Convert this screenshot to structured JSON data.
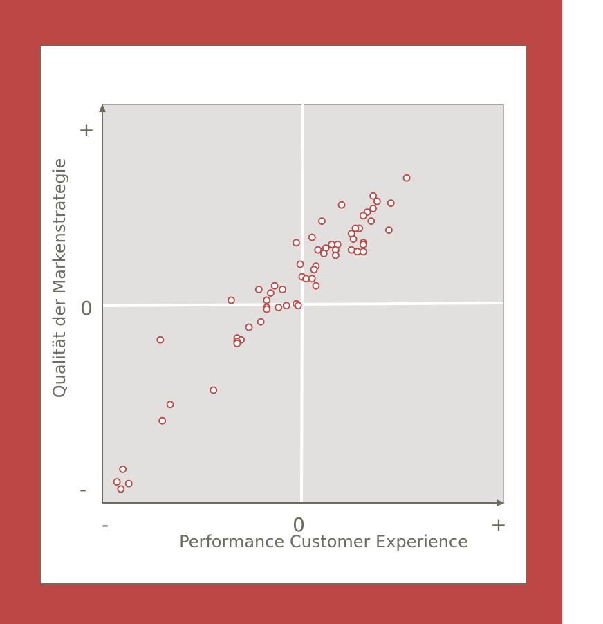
{
  "colors": {
    "frame": "#bd4744",
    "card": "#ffffff",
    "plot_bg": "#e2e0df",
    "axis": "#6c6c62",
    "marker_stroke": "#bd4744",
    "zero_line": "#ffffff"
  },
  "chart_data": {
    "type": "scatter",
    "title": "",
    "xlabel": "Performance Customer Experience",
    "ylabel": "Qualität der Markenstrategie",
    "x_ticks": [
      "-",
      "0",
      "+"
    ],
    "y_ticks": [
      "+",
      "0",
      "-"
    ],
    "xlim": [
      -1,
      1
    ],
    "ylim": [
      -1,
      1
    ],
    "grid": false,
    "legend": "none",
    "zero_lines": true,
    "points": [
      {
        "x": 0.53,
        "y": 0.73
      },
      {
        "x": 0.36,
        "y": 0.63
      },
      {
        "x": 0.38,
        "y": 0.6
      },
      {
        "x": 0.45,
        "y": 0.59
      },
      {
        "x": 0.2,
        "y": 0.58
      },
      {
        "x": 0.36,
        "y": 0.56
      },
      {
        "x": 0.33,
        "y": 0.54
      },
      {
        "x": 0.31,
        "y": 0.52
      },
      {
        "x": 0.35,
        "y": 0.49
      },
      {
        "x": 0.1,
        "y": 0.49
      },
      {
        "x": 0.29,
        "y": 0.45
      },
      {
        "x": 0.27,
        "y": 0.45
      },
      {
        "x": 0.44,
        "y": 0.44
      },
      {
        "x": 0.25,
        "y": 0.42
      },
      {
        "x": 0.05,
        "y": 0.4
      },
      {
        "x": 0.26,
        "y": 0.39
      },
      {
        "x": 0.31,
        "y": 0.37
      },
      {
        "x": -0.03,
        "y": 0.37
      },
      {
        "x": 0.31,
        "y": 0.36
      },
      {
        "x": 0.15,
        "y": 0.36
      },
      {
        "x": 0.18,
        "y": 0.36
      },
      {
        "x": 0.12,
        "y": 0.34
      },
      {
        "x": 0.17,
        "y": 0.33
      },
      {
        "x": 0.25,
        "y": 0.33
      },
      {
        "x": 0.08,
        "y": 0.33
      },
      {
        "x": 0.28,
        "y": 0.32
      },
      {
        "x": 0.11,
        "y": 0.31
      },
      {
        "x": 0.31,
        "y": 0.32
      },
      {
        "x": 0.17,
        "y": 0.3
      },
      {
        "x": -0.01,
        "y": 0.25
      },
      {
        "x": 0.07,
        "y": 0.24
      },
      {
        "x": 0.06,
        "y": 0.22
      },
      {
        "x": 0.0,
        "y": 0.18
      },
      {
        "x": 0.02,
        "y": 0.17
      },
      {
        "x": 0.05,
        "y": 0.17
      },
      {
        "x": 0.07,
        "y": 0.13
      },
      {
        "x": -0.14,
        "y": 0.13
      },
      {
        "x": -0.22,
        "y": 0.11
      },
      {
        "x": -0.1,
        "y": 0.11
      },
      {
        "x": -0.16,
        "y": 0.09
      },
      {
        "x": -0.36,
        "y": 0.05
      },
      {
        "x": -0.18,
        "y": 0.05
      },
      {
        "x": -0.03,
        "y": 0.03
      },
      {
        "x": -0.02,
        "y": 0.02
      },
      {
        "x": -0.08,
        "y": 0.02
      },
      {
        "x": -0.18,
        "y": 0.01
      },
      {
        "x": -0.12,
        "y": 0.01
      },
      {
        "x": -0.18,
        "y": 0.0
      },
      {
        "x": -0.21,
        "y": -0.07
      },
      {
        "x": -0.27,
        "y": -0.1
      },
      {
        "x": -0.72,
        "y": -0.17
      },
      {
        "x": -0.33,
        "y": -0.16
      },
      {
        "x": -0.31,
        "y": -0.17
      },
      {
        "x": -0.33,
        "y": -0.18
      },
      {
        "x": -0.33,
        "y": -0.19
      },
      {
        "x": -0.45,
        "y": -0.45
      },
      {
        "x": -0.67,
        "y": -0.53
      },
      {
        "x": -0.71,
        "y": -0.62
      },
      {
        "x": -0.91,
        "y": -0.89
      },
      {
        "x": -0.94,
        "y": -0.96
      },
      {
        "x": -0.88,
        "y": -0.97
      },
      {
        "x": -0.92,
        "y": -1.0
      }
    ]
  }
}
